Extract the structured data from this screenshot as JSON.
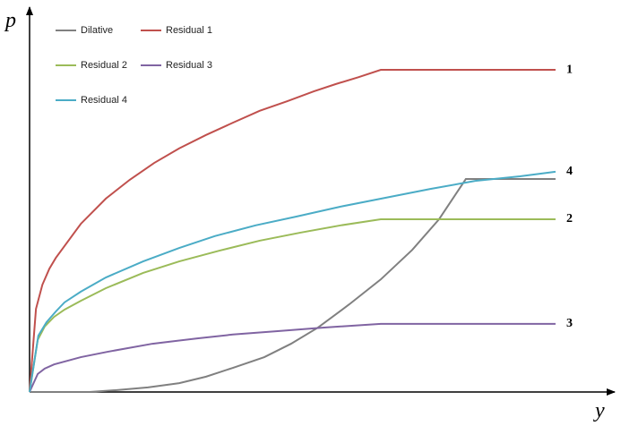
{
  "chart_data": {
    "type": "line",
    "x_label": "y",
    "y_label": "p",
    "xlim": [
      0,
      100
    ],
    "ylim": [
      0,
      100
    ],
    "series": [
      {
        "name": "Dilative",
        "color": "#808080",
        "x": [
          0,
          10.3,
          15.0,
          20.3,
          25.7,
          30.3,
          34.9,
          40.3,
          44.9,
          49.5,
          54.9,
          60.3,
          65.7,
          70.3,
          74.9,
          90.3
        ],
        "values": [
          0,
          0,
          0.5,
          1.2,
          2.3,
          4.0,
          6.3,
          9.1,
          12.6,
          16.8,
          22.9,
          29.4,
          37.1,
          45.1,
          55.6,
          55.6
        ]
      },
      {
        "name": "Residual 1",
        "color": "#c0504d",
        "label": "1",
        "x": [
          0,
          1.1,
          2.2,
          3.4,
          4.5,
          8.8,
          13.1,
          17.2,
          21.4,
          25.7,
          30.3,
          34.9,
          39.5,
          44.2,
          48.8,
          52.6,
          56.5,
          60.3,
          90.3
        ],
        "values": [
          0,
          21.7,
          28.0,
          32.2,
          35.0,
          43.9,
          50.5,
          55.4,
          59.8,
          63.6,
          67.1,
          70.3,
          73.4,
          75.9,
          78.5,
          80.4,
          82.2,
          84.1,
          84.1
        ]
      },
      {
        "name": "Residual 2",
        "color": "#9bbb59",
        "label": "2",
        "x": [
          0,
          1.4,
          2.6,
          4.2,
          6.0,
          8.8,
          13.1,
          19.5,
          25.7,
          32.6,
          39.5,
          46.5,
          53.4,
          60.3,
          90.3
        ],
        "values": [
          0,
          13.6,
          17.1,
          19.6,
          21.5,
          23.8,
          27.1,
          31.1,
          34.1,
          36.9,
          39.5,
          41.6,
          43.5,
          45.1,
          45.1
        ]
      },
      {
        "name": "Residual 3",
        "color": "#8064a2",
        "label": "3",
        "x": [
          0,
          1.4,
          2.6,
          4.2,
          8.8,
          13.4,
          21.1,
          28.8,
          34.9,
          42.6,
          50.3,
          60.3,
          90.3
        ],
        "values": [
          0,
          4.7,
          6.1,
          7.2,
          9.1,
          10.5,
          12.6,
          14.0,
          15.0,
          15.9,
          16.8,
          17.8,
          17.8
        ]
      },
      {
        "name": "Residual 4",
        "color": "#4bacc6",
        "label": "4",
        "x": [
          0,
          1.5,
          2.9,
          4.5,
          6.0,
          8.8,
          13.1,
          19.5,
          25.7,
          31.8,
          38.8,
          45.8,
          53.4,
          61.1,
          68.8,
          76.5,
          84.2,
          90.3
        ],
        "values": [
          0,
          14.7,
          18.2,
          21.0,
          23.4,
          26.2,
          29.9,
          34.1,
          37.6,
          40.7,
          43.5,
          45.8,
          48.4,
          50.7,
          53.0,
          55.1,
          56.3,
          57.5
        ]
      }
    ]
  }
}
